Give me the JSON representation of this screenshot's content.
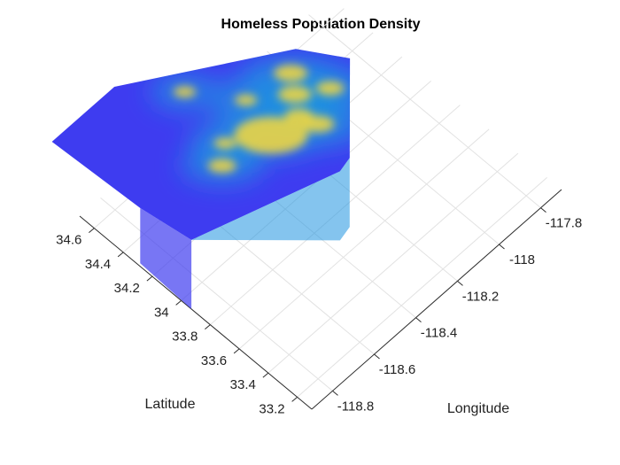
{
  "chart_data": {
    "type": "surface-3d",
    "title": "Homeless Population Density",
    "xlabel": "Longitude",
    "ylabel": "Latitude",
    "x_ticks": [
      -118.8,
      -118.6,
      -118.4,
      -118.2,
      -118,
      -117.8
    ],
    "x_tick_labels": [
      "-118.8",
      "-118.6",
      "-118.4",
      "-118.2",
      "-118",
      "-117.8"
    ],
    "y_ticks": [
      33.2,
      33.4,
      33.6,
      33.8,
      34,
      34.2,
      34.4,
      34.6
    ],
    "y_tick_labels": [
      "33.2",
      "33.4",
      "33.6",
      "33.8",
      "34",
      "34.2",
      "34.4",
      "34.6"
    ],
    "xlim": [
      -118.9,
      -117.7
    ],
    "ylim": [
      33.1,
      34.7
    ],
    "grid": true,
    "colormap": "parula",
    "colors": {
      "low": "#3e3cf0",
      "mid": "#1f93e0",
      "high": "#f8d93a"
    },
    "hull_vertices_lon_lat": [
      [
        -118.95,
        34.82
      ],
      [
        -118.65,
        34.82
      ],
      [
        -118.12,
        34.33
      ],
      [
        -118.02,
        34.1
      ],
      [
        -118.3,
        33.7
      ],
      [
        -118.36,
        33.68
      ],
      [
        -118.9,
        33.93
      ],
      [
        -118.93,
        34.24
      ]
    ],
    "hotspots_lon_lat": [
      [
        -118.42,
        34.07
      ],
      [
        -118.3,
        34.05
      ],
      [
        -118.55,
        34.2
      ],
      [
        -118.25,
        34.15
      ],
      [
        -118.15,
        34.05
      ],
      [
        -118.5,
        34.55
      ],
      [
        -118.28,
        33.95
      ],
      [
        -118.62,
        34.12
      ],
      [
        -118.38,
        34.3
      ],
      [
        -118.2,
        34.25
      ]
    ]
  }
}
